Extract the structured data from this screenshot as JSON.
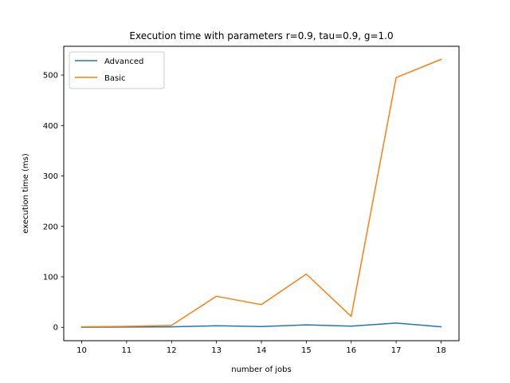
{
  "chart_data": {
    "type": "line",
    "title": "Execution time with parameters r=0.9, tau=0.9, g=1.0",
    "xlabel": "number of jobs",
    "ylabel": "execution time (ms)",
    "x": [
      10,
      11,
      12,
      13,
      14,
      15,
      16,
      17,
      18
    ],
    "xlim": [
      9.6,
      18.4
    ],
    "ylim": [
      -26.5,
      557
    ],
    "xticks": [
      10,
      11,
      12,
      13,
      14,
      15,
      16,
      17,
      18
    ],
    "yticks": [
      0,
      100,
      200,
      300,
      400,
      500
    ],
    "grid": false,
    "legend_position": "top-left",
    "series": [
      {
        "name": "Advanced",
        "color": "#1f77b4",
        "values": [
          0.3,
          0.5,
          1,
          3,
          1.5,
          5,
          2.5,
          8.5,
          1
        ]
      },
      {
        "name": "Basic",
        "color": "#ff7f0e",
        "values": [
          1,
          2,
          4,
          61.5,
          45,
          105.5,
          21.5,
          495,
          531
        ]
      }
    ]
  }
}
